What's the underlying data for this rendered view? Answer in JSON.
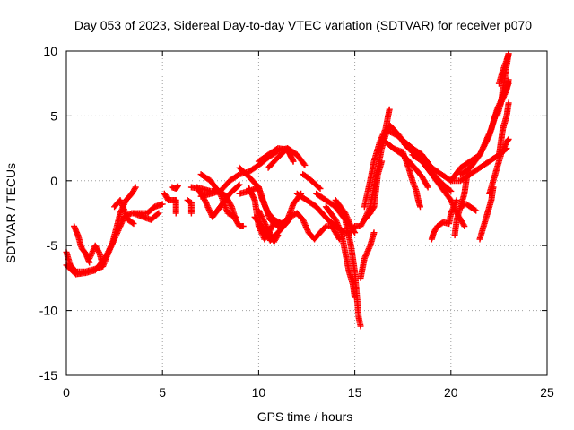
{
  "chart_data": {
    "type": "scatter",
    "title": "Day 053 of 2023, Sidereal Day-to-day VTEC variation (SDTVAR) for receiver p070",
    "xlabel": "GPS time / hours",
    "ylabel": "SDTVAR / TECUs",
    "xlim": [
      0,
      25
    ],
    "ylim": [
      -15,
      10
    ],
    "xticks": [
      0,
      5,
      10,
      15,
      20,
      25
    ],
    "yticks": [
      -15,
      -10,
      -5,
      0,
      5,
      10
    ],
    "grid": true,
    "marker": "+",
    "series_color": "#ff0000",
    "tracks": [
      [
        [
          0.0,
          -5.5
        ],
        [
          0.2,
          -6.5
        ],
        [
          0.5,
          -7.0
        ],
        [
          1.0,
          -7.0
        ],
        [
          1.5,
          -6.8
        ],
        [
          1.9,
          -6.6
        ],
        [
          2.2,
          -5.5
        ],
        [
          2.5,
          -4.5
        ],
        [
          2.8,
          -3.5
        ],
        [
          3.0,
          -2.8
        ],
        [
          3.4,
          -2.5
        ],
        [
          3.8,
          -2.5
        ],
        [
          4.2,
          -2.5
        ],
        [
          4.6,
          -2.0
        ],
        [
          5.0,
          -1.8
        ]
      ],
      [
        [
          0.0,
          -6.5
        ],
        [
          0.5,
          -7.2
        ],
        [
          1.0,
          -7.1
        ],
        [
          1.5,
          -6.9
        ],
        [
          2.0,
          -6.0
        ],
        [
          2.4,
          -4.8
        ],
        [
          2.8,
          -2.5
        ],
        [
          3.1,
          -1.5
        ],
        [
          3.4,
          -1.0
        ],
        [
          3.6,
          -0.5
        ]
      ],
      [
        [
          0.4,
          -3.5
        ],
        [
          0.6,
          -4.2
        ],
        [
          0.8,
          -5.2
        ],
        [
          1.0,
          -5.6
        ],
        [
          1.2,
          -6.3
        ]
      ],
      [
        [
          1.2,
          -6.0
        ],
        [
          1.5,
          -5.0
        ],
        [
          1.7,
          -5.5
        ],
        [
          1.9,
          -6.5
        ]
      ],
      [
        [
          2.5,
          -2.0
        ],
        [
          2.8,
          -1.5
        ],
        [
          3.0,
          -2.2
        ],
        [
          3.2,
          -3.0
        ],
        [
          3.5,
          -3.3
        ]
      ],
      [
        [
          3.5,
          -2.5
        ],
        [
          4.0,
          -2.8
        ],
        [
          4.4,
          -3.0
        ],
        [
          4.8,
          -2.5
        ]
      ],
      [
        [
          5.1,
          -1.0
        ],
        [
          5.3,
          -1.5
        ],
        [
          5.5,
          -1.5
        ],
        [
          5.7,
          -1.5
        ],
        [
          5.7,
          -2.5
        ]
      ],
      [
        [
          5.5,
          -0.5
        ],
        [
          5.7,
          -0.6
        ],
        [
          5.8,
          -0.4
        ]
      ],
      [
        [
          6.3,
          -1.5
        ],
        [
          6.5,
          -1.7
        ],
        [
          6.5,
          -2.5
        ]
      ],
      [
        [
          6.5,
          -0.5
        ],
        [
          7.0,
          -0.6
        ],
        [
          7.5,
          -0.8
        ],
        [
          8.0,
          -0.8
        ],
        [
          8.5,
          0.0
        ],
        [
          9.0,
          0.5
        ],
        [
          9.5,
          0.7
        ],
        [
          10.0,
          1.2
        ],
        [
          10.5,
          1.8
        ],
        [
          11.0,
          2.3
        ],
        [
          11.5,
          2.5
        ],
        [
          11.8,
          1.5
        ]
      ],
      [
        [
          7.0,
          -1.2
        ],
        [
          7.5,
          -1.0
        ],
        [
          8.0,
          -0.8
        ],
        [
          8.3,
          -1.2
        ],
        [
          8.6,
          -2.0
        ],
        [
          8.8,
          -3.0
        ],
        [
          9.0,
          -3.5
        ],
        [
          9.2,
          -3.5
        ]
      ],
      [
        [
          7.0,
          0.5
        ],
        [
          7.5,
          0.0
        ],
        [
          8.0,
          -1.0
        ],
        [
          8.4,
          -2.5
        ],
        [
          8.8,
          -2.8
        ]
      ],
      [
        [
          6.8,
          -0.5
        ],
        [
          7.2,
          -1.5
        ],
        [
          7.6,
          -2.8
        ],
        [
          8.0,
          -2.0
        ],
        [
          8.5,
          -1.0
        ],
        [
          9.0,
          -0.3
        ]
      ],
      [
        [
          9.0,
          1.0
        ],
        [
          9.5,
          0.3
        ],
        [
          10.0,
          -0.5
        ],
        [
          10.3,
          -1.8
        ],
        [
          10.6,
          -3.0
        ],
        [
          11.0,
          -3.5
        ],
        [
          11.5,
          -3.0
        ],
        [
          11.8,
          -1.8
        ],
        [
          12.2,
          -1.0
        ]
      ],
      [
        [
          9.0,
          -1.0
        ],
        [
          9.5,
          -0.8
        ],
        [
          10.0,
          -0.5
        ],
        [
          10.2,
          -1.5
        ],
        [
          10.5,
          -2.5
        ],
        [
          10.8,
          -3.0
        ],
        [
          11.2,
          -3.3
        ],
        [
          11.6,
          -2.8
        ],
        [
          12.0,
          -2.5
        ]
      ],
      [
        [
          9.5,
          -0.6
        ],
        [
          9.8,
          -1.5
        ],
        [
          10.0,
          -3.5
        ],
        [
          10.3,
          -4.5
        ],
        [
          10.6,
          -3.8
        ],
        [
          10.8,
          -3.2
        ]
      ],
      [
        [
          10.0,
          -2.3
        ],
        [
          10.5,
          -3.8
        ],
        [
          10.8,
          -4.7
        ],
        [
          11.0,
          -4.2
        ]
      ],
      [
        [
          9.8,
          -2.8
        ],
        [
          10.2,
          -3.6
        ],
        [
          10.6,
          -4.6
        ],
        [
          11.0,
          -4.0
        ],
        [
          11.3,
          -3.5
        ],
        [
          11.6,
          -3.0
        ]
      ],
      [
        [
          10.0,
          1.5
        ],
        [
          10.5,
          2.0
        ],
        [
          11.0,
          2.5
        ],
        [
          11.5,
          2.4
        ],
        [
          11.8,
          1.5
        ]
      ],
      [
        [
          10.5,
          1.0
        ],
        [
          11.0,
          1.8
        ],
        [
          11.5,
          2.5
        ],
        [
          12.0,
          2.0
        ],
        [
          12.4,
          1.2
        ]
      ],
      [
        [
          12.0,
          -2.5
        ],
        [
          12.3,
          -3.0
        ],
        [
          12.6,
          -4.0
        ],
        [
          12.9,
          -4.5
        ],
        [
          13.2,
          -4.0
        ],
        [
          13.5,
          -3.5
        ],
        [
          13.8,
          -3.5
        ],
        [
          14.0,
          -4.0
        ],
        [
          14.2,
          -4.5
        ]
      ],
      [
        [
          12.0,
          -1.0
        ],
        [
          12.5,
          -1.5
        ],
        [
          13.0,
          -2.0
        ],
        [
          13.3,
          -2.5
        ],
        [
          13.6,
          -3.0
        ],
        [
          14.0,
          -3.5
        ],
        [
          14.5,
          -4.0
        ],
        [
          14.8,
          -4.0
        ],
        [
          15.0,
          -3.5
        ],
        [
          15.3,
          -3.5
        ],
        [
          15.5,
          -3.0
        ],
        [
          15.8,
          -2.5
        ],
        [
          16.0,
          -2.0
        ]
      ],
      [
        [
          12.3,
          0.5
        ],
        [
          12.6,
          0.2
        ],
        [
          12.9,
          -0.2
        ],
        [
          13.2,
          -0.6
        ]
      ],
      [
        [
          13.0,
          -1.0
        ],
        [
          13.5,
          -1.5
        ],
        [
          14.0,
          -2.0
        ],
        [
          14.5,
          -3.0
        ],
        [
          14.8,
          -5.0
        ],
        [
          15.0,
          -7.0
        ],
        [
          15.2,
          -10.5
        ],
        [
          15.3,
          -11.2
        ]
      ],
      [
        [
          13.5,
          -2.0
        ],
        [
          14.0,
          -3.0
        ],
        [
          14.3,
          -4.0
        ],
        [
          14.5,
          -5.5
        ],
        [
          14.7,
          -7.0
        ],
        [
          14.9,
          -8.0
        ],
        [
          15.0,
          -9.0
        ]
      ],
      [
        [
          14.0,
          -1.5
        ],
        [
          14.5,
          -2.5
        ],
        [
          14.8,
          -3.5
        ],
        [
          15.0,
          -4.0
        ]
      ],
      [
        [
          15.3,
          -7.5
        ],
        [
          15.5,
          -6.0
        ],
        [
          15.8,
          -5.0
        ],
        [
          16.0,
          -4.0
        ]
      ],
      [
        [
          15.5,
          -3.0
        ],
        [
          15.8,
          -2.0
        ],
        [
          16.0,
          -0.5
        ],
        [
          16.2,
          1.0
        ],
        [
          16.4,
          2.5
        ],
        [
          16.6,
          3.5
        ],
        [
          16.8,
          4.3
        ],
        [
          17.0,
          4.0
        ],
        [
          17.3,
          3.5
        ],
        [
          17.6,
          2.8
        ],
        [
          18.0,
          2.2
        ],
        [
          18.5,
          1.8
        ]
      ],
      [
        [
          15.5,
          -2.0
        ],
        [
          15.8,
          0.0
        ],
        [
          16.0,
          1.5
        ],
        [
          16.3,
          3.0
        ],
        [
          16.6,
          4.0
        ],
        [
          16.8,
          5.5
        ]
      ],
      [
        [
          16.0,
          -2.0
        ],
        [
          16.2,
          0.5
        ],
        [
          16.4,
          1.5
        ]
      ],
      [
        [
          16.6,
          3.0
        ],
        [
          17.0,
          2.5
        ],
        [
          17.5,
          2.0
        ],
        [
          18.0,
          1.2
        ],
        [
          18.5,
          0.3
        ],
        [
          18.8,
          -0.5
        ]
      ],
      [
        [
          16.8,
          3.8
        ],
        [
          17.2,
          3.5
        ],
        [
          17.6,
          3.0
        ],
        [
          18.0,
          2.5
        ],
        [
          18.4,
          1.8
        ],
        [
          18.8,
          1.0
        ],
        [
          19.2,
          0.3
        ],
        [
          19.6,
          -0.3
        ],
        [
          20.0,
          -0.8
        ]
      ],
      [
        [
          17.0,
          2.5
        ],
        [
          17.5,
          2.2
        ],
        [
          17.8,
          1.0
        ],
        [
          18.0,
          0.0
        ],
        [
          18.2,
          -0.8
        ],
        [
          18.3,
          -1.5
        ],
        [
          18.4,
          -2.0
        ]
      ],
      [
        [
          17.5,
          3.0
        ],
        [
          18.0,
          2.5
        ],
        [
          18.5,
          2.0
        ],
        [
          19.0,
          1.0
        ],
        [
          19.5,
          0.5
        ],
        [
          20.0,
          0.0
        ],
        [
          20.5,
          0.0
        ],
        [
          21.0,
          0.5
        ],
        [
          21.5,
          1.0
        ],
        [
          22.0,
          1.5
        ],
        [
          22.5,
          2.0
        ],
        [
          22.9,
          2.5
        ]
      ],
      [
        [
          18.0,
          2.0
        ],
        [
          18.5,
          1.5
        ],
        [
          19.0,
          0.5
        ],
        [
          19.5,
          -0.5
        ],
        [
          20.0,
          -1.5
        ],
        [
          20.3,
          -2.5
        ],
        [
          20.5,
          -3.0
        ],
        [
          20.7,
          -3.5
        ]
      ],
      [
        [
          19.0,
          -4.5
        ],
        [
          19.1,
          -4.0
        ],
        [
          19.3,
          -3.5
        ],
        [
          19.6,
          -3.2
        ],
        [
          19.9,
          -3.3
        ],
        [
          20.0,
          -2.5
        ],
        [
          20.3,
          -1.5
        ]
      ],
      [
        [
          20.2,
          -4.2
        ],
        [
          20.3,
          -3.0
        ],
        [
          20.5,
          -2.0
        ],
        [
          20.7,
          -1.0
        ],
        [
          20.8,
          0.0
        ],
        [
          20.9,
          1.0
        ]
      ],
      [
        [
          20.0,
          0.0
        ],
        [
          20.5,
          1.0
        ],
        [
          21.0,
          1.5
        ],
        [
          21.5,
          2.0
        ],
        [
          22.0,
          3.5
        ],
        [
          22.3,
          5.0
        ],
        [
          22.6,
          6.0
        ],
        [
          22.9,
          7.0
        ],
        [
          23.0,
          7.8
        ]
      ],
      [
        [
          20.5,
          0.5
        ],
        [
          21.0,
          1.0
        ],
        [
          21.5,
          2.0
        ],
        [
          21.8,
          3.0
        ],
        [
          22.1,
          4.0
        ],
        [
          22.4,
          5.5
        ],
        [
          22.7,
          6.5
        ],
        [
          23.0,
          7.5
        ]
      ],
      [
        [
          20.5,
          -2.0
        ],
        [
          20.8,
          -1.8
        ],
        [
          21.0,
          -2.0
        ],
        [
          21.3,
          -2.3
        ]
      ],
      [
        [
          21.5,
          -4.5
        ],
        [
          21.7,
          -3.5
        ],
        [
          21.9,
          -2.5
        ],
        [
          22.1,
          -1.5
        ],
        [
          22.2,
          -0.5
        ]
      ],
      [
        [
          22.0,
          -1.0
        ],
        [
          22.2,
          0.0
        ],
        [
          22.4,
          1.0
        ],
        [
          22.6,
          2.0
        ],
        [
          22.9,
          3.0
        ],
        [
          23.0,
          3.2
        ]
      ],
      [
        [
          22.4,
          5.0
        ],
        [
          22.6,
          6.0
        ],
        [
          22.7,
          7.0
        ],
        [
          22.8,
          8.0
        ],
        [
          23.0,
          9.8
        ]
      ],
      [
        [
          22.5,
          2.0
        ],
        [
          22.6,
          3.0
        ],
        [
          22.7,
          4.0
        ],
        [
          22.9,
          5.0
        ],
        [
          23.0,
          6.0
        ]
      ],
      [
        [
          22.5,
          7.5
        ],
        [
          22.7,
          8.5
        ],
        [
          22.9,
          9.3
        ],
        [
          23.0,
          9.8
        ]
      ]
    ]
  }
}
